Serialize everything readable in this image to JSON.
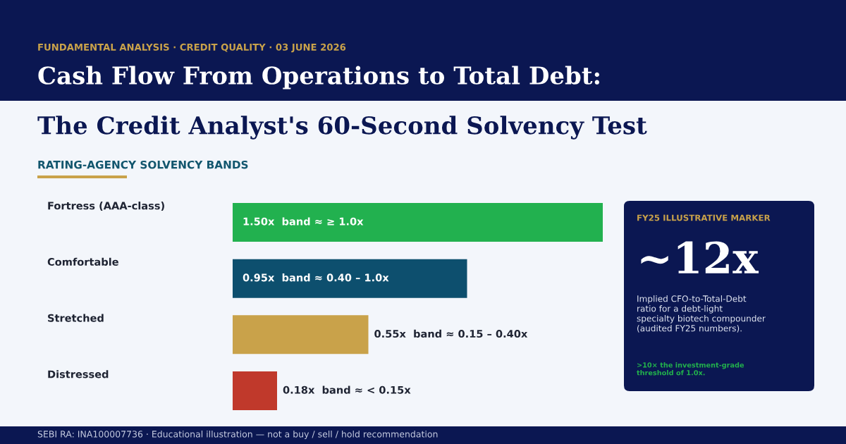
{
  "chart_data": [
    {
      "type": "bar",
      "orientation": "horizontal",
      "title": "Cash Flow From Operations to Total Debt:\nThe Credit Analyst's 60-Second Solvency Test",
      "subtitle": "FUNDAMENTAL ANALYSIS · CREDIT QUALITY · 03 JUNE 2026",
      "categories": [
        "Fortress (AAA-class)",
        "Comfortable",
        "Stretched",
        "Distressed"
      ],
      "values": [
        1.5,
        0.95,
        0.55,
        0.18
      ],
      "colors": [
        "#22b14f",
        "#0d4f6e",
        "#c9a24a",
        "#c0392b"
      ],
      "value_labels": [
        "1.50x  band ≈ ≥ 1.0x",
        "0.95x  band ≈ 0.40 – 1.0x",
        "0.55x  band ≈ 0.15 – 0.40x",
        "0.18x  band ≈ < 0.15x"
      ],
      "annotations": [
        "RATING-AGENCY SOLVENCY BANDS",
        "SEBI RA: INA100007736 · Educational illustration — not a buy / sell / hold recommendation"
      ]
    },
    {
      "type": "other",
      "title": "FY25 ILLUSTRATIVE MARKER",
      "annotations": [
        "~12x",
        "Implied CFO-to-Total-Debt\nratio for a debt-light\nspecialty biotech compounder\n(audited FY25 numbers).",
        ">10× the investment-grade\nthreshold of 1.0x."
      ]
    }
  ]
}
